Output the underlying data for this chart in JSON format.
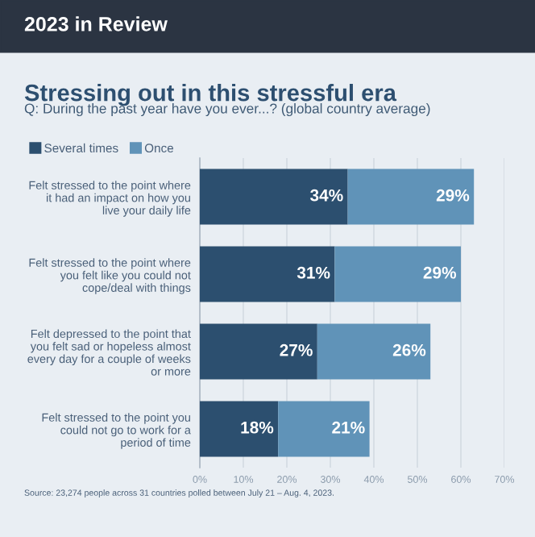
{
  "chart_data": {
    "type": "bar",
    "orientation": "horizontal",
    "stacked": true,
    "title": "Stressing out in this stressful era",
    "subtitle": "Q: During the past year have you ever...? (global country average)",
    "categories": [
      "Felt stressed to the point where\nit had an impact on how you\nlive your daily life",
      "Felt stressed to the point where\nyou felt like you could not\ncope/deal with things",
      "Felt depressed to the point that\nyou felt sad or hopeless almost\nevery day for a couple of weeks\nor more",
      "Felt stressed to the point you\ncould not go to work for a\nperiod of time"
    ],
    "series": [
      {
        "name": "Several times",
        "color": "#2c4f6f",
        "values": [
          34,
          31,
          27,
          18
        ],
        "value_labels": [
          "34%",
          "31%",
          "27%",
          "18%"
        ]
      },
      {
        "name": "Once",
        "color": "#6093b8",
        "values": [
          29,
          29,
          26,
          21
        ],
        "value_labels": [
          "29%",
          "29%",
          "26%",
          "21%"
        ]
      }
    ],
    "xlim": [
      0,
      70
    ],
    "xticks": [
      {
        "value": 0,
        "label": "0%"
      },
      {
        "value": 10,
        "label": "10%"
      },
      {
        "value": 20,
        "label": "20%"
      },
      {
        "value": 30,
        "label": "30%"
      },
      {
        "value": 40,
        "label": "40%"
      },
      {
        "value": 50,
        "label": "50%"
      },
      {
        "value": 60,
        "label": "60%"
      },
      {
        "value": 70,
        "label": "70%"
      }
    ],
    "grid": "x",
    "legend": "top left",
    "annotations": [
      "2023 in Review",
      "Source: 23,274 people across 31 countries polled between July 21 – Aug. 4, 2023."
    ]
  }
}
